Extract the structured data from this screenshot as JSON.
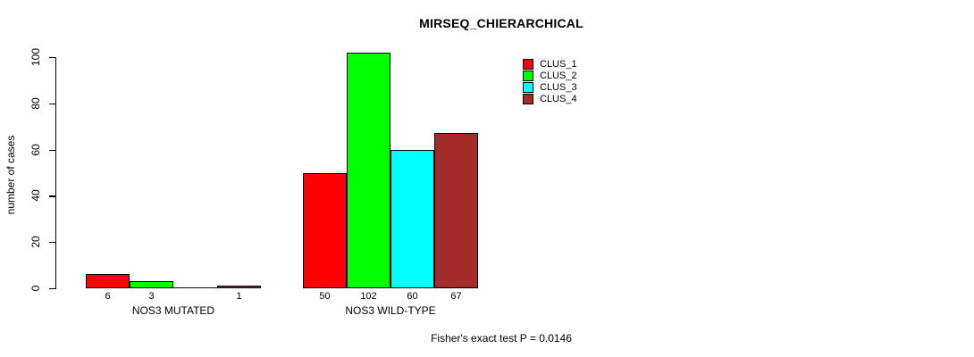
{
  "chart_data": {
    "type": "bar",
    "title": "MIRSEQ_CHIERARCHICAL",
    "ylabel": "number of cases",
    "xlabel": "",
    "yticks": [
      0,
      20,
      40,
      60,
      80,
      100
    ],
    "ylim": [
      0,
      102
    ],
    "grid": false,
    "legend_position": "top-right",
    "categories": [
      "NOS3 MUTATED",
      "NOS3 WILD-TYPE"
    ],
    "series": [
      {
        "name": "CLUS_1",
        "color": "#ff0000",
        "values": [
          6,
          50
        ]
      },
      {
        "name": "CLUS_2",
        "color": "#00ff00",
        "values": [
          3,
          102
        ]
      },
      {
        "name": "CLUS_3",
        "color": "#00ffff",
        "values": [
          0,
          60
        ]
      },
      {
        "name": "CLUS_4",
        "color": "#a52a2a",
        "values": [
          1,
          67
        ]
      }
    ],
    "bar_value_labels": [
      [
        "6",
        "3",
        "",
        "1"
      ],
      [
        "50",
        "102",
        "60",
        "67"
      ]
    ],
    "annotation": "Fisher's exact test P = 0.0146"
  }
}
